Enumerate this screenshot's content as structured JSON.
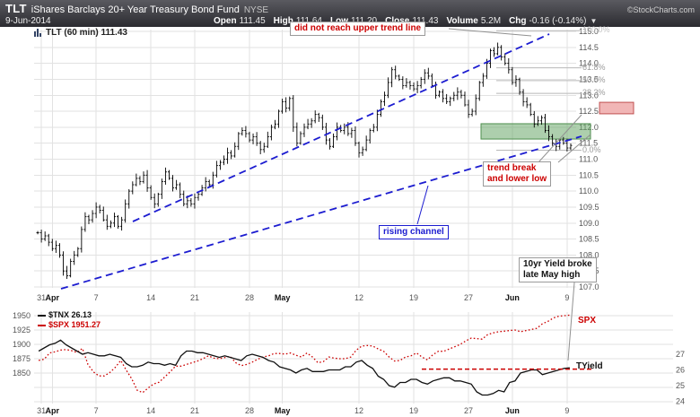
{
  "header": {
    "symbol": "TLT",
    "name": "iShares Barclays 20+ Year Treasury Bond Fund",
    "exchange": "NYSE",
    "date": "9-Jun-2014",
    "credit": "©StockCharts.com",
    "quote": [
      {
        "label": "Open",
        "value": "111.45"
      },
      {
        "label": "High",
        "value": "111.64"
      },
      {
        "label": "Low",
        "value": "111.20"
      },
      {
        "label": "Close",
        "value": "111.43"
      },
      {
        "label": "Volume",
        "value": "5.2M"
      },
      {
        "label": "Chg",
        "value": "-0.16 (-0.14%)"
      }
    ],
    "chg_direction": "▼"
  },
  "main_chart": {
    "legend": "TLT (60 min) 111.43",
    "fib": [
      {
        "label": "100.0%",
        "price": 115.02
      },
      {
        "label": "61.8%",
        "price": 113.86
      },
      {
        "label": "50.0%",
        "price": 113.46
      },
      {
        "label": "38.2%",
        "price": 113.06
      },
      {
        "label": "0.0%",
        "price": 111.28
      }
    ],
    "annotations": {
      "no_upper": "did not reach upper trend line",
      "break1": "trend break",
      "break2": "and lower low",
      "channel": "rising channel"
    }
  },
  "lower_chart": {
    "legend_tnx": "$TNX 26.13",
    "legend_spx": "$SPX 1951.27",
    "label_spx": "SPX",
    "label_tyield": "TYield",
    "annotations": {
      "yield1": "10yr Yield broke",
      "yield2": "late May high"
    }
  },
  "colors": {
    "header_bg": "#3a3a40",
    "grid": "#e2e2e2",
    "bar": "#000000",
    "channel": "#1c1cd0",
    "support_zone": "#4e8f4e",
    "resistance_zone": "#c05050",
    "fib": "#9a9a9a",
    "tnx": "#111111",
    "spx": "#cc0000",
    "annotation_red": "#cc0000",
    "annotation_blue": "#1c1cd0"
  },
  "chart_data": [
    {
      "type": "ohlc",
      "title": "TLT (60 min)",
      "last": 111.43,
      "ylim": [
        107.0,
        115.0
      ],
      "y_ticks": [
        115.0,
        114.5,
        114.0,
        113.5,
        113.0,
        112.5,
        112.0,
        111.5,
        111.0,
        110.5,
        110.0,
        109.5,
        109.0,
        108.5,
        108.0,
        107.5,
        107.0
      ],
      "x_ticks": [
        {
          "label": "31",
          "day": 0,
          "month": false
        },
        {
          "label": "Apr",
          "day": 1,
          "month": true
        },
        {
          "label": "7",
          "day": 5,
          "month": false
        },
        {
          "label": "14",
          "day": 10,
          "month": false
        },
        {
          "label": "21",
          "day": 14,
          "month": false
        },
        {
          "label": "28",
          "day": 19,
          "month": false
        },
        {
          "label": "May",
          "day": 22,
          "month": true
        },
        {
          "label": "12",
          "day": 29,
          "month": false
        },
        {
          "label": "19",
          "day": 34,
          "month": false
        },
        {
          "label": "27",
          "day": 39,
          "month": false
        },
        {
          "label": "Jun",
          "day": 43,
          "month": true
        },
        {
          "label": "9",
          "day": 48,
          "month": false
        }
      ],
      "bars_per_day": 3,
      "close": [
        108.7,
        108.5,
        108.6,
        108.4,
        108.2,
        108.3,
        108.0,
        107.5,
        107.35,
        107.8,
        108.0,
        108.2,
        108.8,
        109.2,
        109.1,
        109.3,
        109.5,
        109.4,
        109.1,
        108.9,
        109.0,
        109.2,
        108.9,
        109.1,
        109.6,
        110.0,
        110.2,
        110.4,
        110.3,
        110.5,
        110.1,
        109.8,
        109.6,
        109.9,
        110.3,
        110.6,
        110.4,
        110.1,
        110.2,
        109.9,
        109.6,
        109.7,
        109.6,
        109.8,
        109.9,
        110.1,
        110.3,
        110.2,
        110.5,
        110.8,
        110.9,
        111.0,
        111.2,
        111.1,
        111.4,
        111.8,
        111.9,
        111.8,
        111.6,
        111.7,
        111.5,
        111.3,
        111.4,
        111.7,
        112.0,
        112.1,
        112.5,
        112.8,
        112.6,
        112.9,
        112.0,
        111.5,
        111.8,
        112.0,
        112.1,
        112.2,
        112.4,
        112.3,
        112.0,
        111.6,
        111.4,
        111.7,
        112.0,
        111.9,
        112.0,
        111.8,
        111.9,
        111.5,
        111.2,
        111.3,
        111.6,
        111.9,
        112.0,
        112.4,
        112.8,
        113.0,
        113.4,
        113.8,
        113.6,
        113.5,
        113.3,
        113.4,
        113.3,
        113.2,
        113.3,
        113.5,
        113.7,
        113.6,
        113.3,
        113.0,
        113.1,
        112.9,
        112.8,
        112.9,
        113.0,
        113.1,
        113.0,
        112.7,
        112.4,
        112.5,
        112.9,
        113.4,
        113.6,
        114.0,
        114.4,
        114.3,
        114.5,
        114.2,
        114.0,
        113.8,
        113.4,
        113.5,
        113.1,
        112.8,
        112.7,
        112.4,
        112.1,
        112.2,
        112.3,
        111.9,
        111.7,
        111.5,
        111.4,
        111.6,
        111.5,
        111.35,
        111.43
      ]
    },
    {
      "type": "line",
      "left_axis_ticks": [
        1950,
        1925,
        1900,
        1875,
        1850
      ],
      "right_axis_ticks": [
        27,
        26,
        25,
        24
      ],
      "points_per_day": 2,
      "x_ticks": [
        {
          "label": "31",
          "day": 0,
          "month": false
        },
        {
          "label": "Apr",
          "day": 1,
          "month": true
        },
        {
          "label": "7",
          "day": 5,
          "month": false
        },
        {
          "label": "14",
          "day": 10,
          "month": false
        },
        {
          "label": "21",
          "day": 14,
          "month": false
        },
        {
          "label": "28",
          "day": 19,
          "month": false
        },
        {
          "label": "May",
          "day": 22,
          "month": true
        },
        {
          "label": "12",
          "day": 29,
          "month": false
        },
        {
          "label": "19",
          "day": 34,
          "month": false
        },
        {
          "label": "27",
          "day": 39,
          "month": false
        },
        {
          "label": "Jun",
          "day": 43,
          "month": true
        },
        {
          "label": "9",
          "day": 48,
          "month": false
        }
      ],
      "series": [
        {
          "name": "$TNX",
          "label": "TYield",
          "color": "#111111",
          "style": "solid",
          "axis": "right",
          "last": 26.13,
          "values": [
            27.2,
            27.4,
            27.6,
            27.7,
            27.9,
            27.6,
            27.4,
            27.2,
            27.0,
            27.1,
            27.0,
            26.9,
            26.9,
            27.0,
            26.9,
            26.8,
            26.4,
            26.2,
            26.2,
            26.3,
            26.5,
            26.4,
            26.4,
            26.3,
            26.4,
            26.3,
            26.9,
            27.2,
            27.2,
            27.1,
            27.1,
            27.0,
            26.9,
            26.8,
            26.9,
            26.8,
            26.7,
            26.6,
            26.9,
            27.0,
            26.9,
            26.8,
            26.6,
            26.5,
            26.2,
            26.1,
            26.0,
            25.8,
            26.0,
            26.1,
            25.9,
            25.9,
            25.9,
            26.0,
            26.0,
            26.0,
            26.2,
            26.2,
            26.5,
            26.6,
            26.3,
            26.1,
            25.6,
            25.4,
            25.0,
            24.9,
            25.2,
            25.2,
            25.4,
            25.4,
            25.2,
            25.1,
            25.3,
            25.4,
            25.5,
            25.5,
            25.3,
            25.3,
            25.2,
            25.1,
            24.6,
            24.4,
            24.4,
            24.5,
            24.7,
            24.6,
            25.2,
            25.3,
            25.8,
            25.9,
            26.0,
            26.0,
            25.7,
            25.8,
            25.9,
            26.0,
            26.1,
            26.13
          ]
        },
        {
          "name": "$SPX",
          "label": "SPX",
          "color": "#cc0000",
          "style": "dotted",
          "axis": "left",
          "last": 1951.27,
          "values": [
            1872,
            1874,
            1885,
            1887,
            1890,
            1891,
            1889,
            1886,
            1893,
            1865,
            1852,
            1845,
            1845,
            1851,
            1860,
            1872,
            1855,
            1840,
            1820,
            1816,
            1824,
            1831,
            1834,
            1843,
            1852,
            1862,
            1862,
            1865,
            1868,
            1871,
            1875,
            1880,
            1876,
            1875,
            1877,
            1879,
            1868,
            1863,
            1865,
            1869,
            1874,
            1878,
            1880,
            1884,
            1884,
            1883,
            1885,
            1881,
            1878,
            1885,
            1878,
            1868,
            1870,
            1878,
            1876,
            1875,
            1875,
            1878,
            1890,
            1897,
            1898,
            1897,
            1892,
            1888,
            1878,
            1871,
            1872,
            1878,
            1880,
            1885,
            1878,
            1873,
            1882,
            1888,
            1888,
            1892,
            1896,
            1900,
            1906,
            1911,
            1910,
            1909,
            1917,
            1920,
            1922,
            1923,
            1924,
            1925,
            1922,
            1924,
            1926,
            1928,
            1936,
            1940,
            1946,
            1949,
            1950,
            1951
          ]
        }
      ],
      "resistance_line": {
        "value": 26.05,
        "color": "#cc0000",
        "style": "dashed"
      }
    }
  ]
}
